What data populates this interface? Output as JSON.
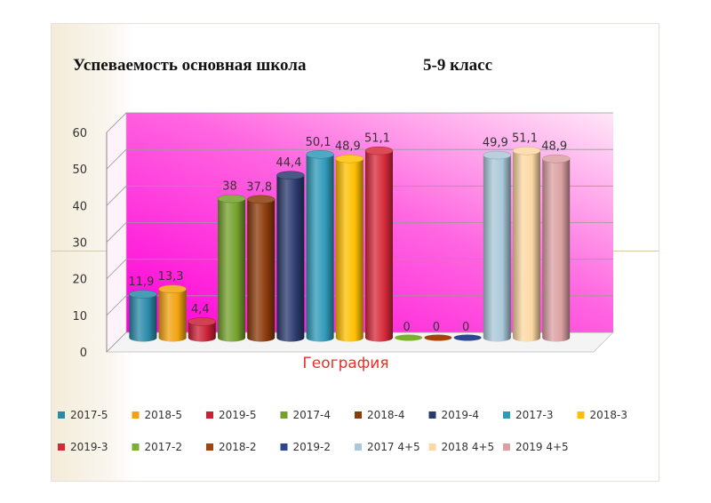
{
  "slide": {
    "title": "Успеваемость основная школа",
    "subtitle": "5-9 класс"
  },
  "colors": {
    "wall_gradient_start": "#ff00d8",
    "wall_gradient_end": "#ffe6f7",
    "floor": "#f4f4f4",
    "category_label": "#e8312a",
    "value_label": "#333333"
  },
  "chart_data": {
    "type": "bar",
    "style": "3d-cylinder",
    "categories": [
      "География"
    ],
    "xlabel": "География",
    "ylabel": "",
    "ylim": [
      0,
      60
    ],
    "yticks": [
      0,
      10,
      20,
      30,
      40,
      50,
      60
    ],
    "grid": true,
    "legend_position": "bottom",
    "series": [
      {
        "name": "2017-5",
        "values": [
          11.9
        ],
        "label": "11,9",
        "color": "#2a8aa8"
      },
      {
        "name": "2018-5",
        "values": [
          13.3
        ],
        "label": "13,3",
        "color": "#f2a20f"
      },
      {
        "name": "2019-5",
        "values": [
          4.4
        ],
        "label": "4,4",
        "color": "#c92035"
      },
      {
        "name": "2017-4",
        "values": [
          38
        ],
        "label": "38",
        "color": "#74a02c"
      },
      {
        "name": "2018-4",
        "values": [
          37.8
        ],
        "label": "37,8",
        "color": "#8b3a0a"
      },
      {
        "name": "2019-4",
        "values": [
          44.4
        ],
        "label": "44,4",
        "color": "#2b3a6e"
      },
      {
        "name": "2017-3",
        "values": [
          50.1
        ],
        "label": "50,1",
        "color": "#2f9ab8"
      },
      {
        "name": "2018-3",
        "values": [
          48.9
        ],
        "label": "48,9",
        "color": "#ffbf00"
      },
      {
        "name": "2019-3",
        "values": [
          51.1
        ],
        "label": "51,1",
        "color": "#d62a3a"
      },
      {
        "name": "2017-2",
        "values": [
          0
        ],
        "label": "0",
        "color": "#7bb02f"
      },
      {
        "name": "2018-2",
        "values": [
          0
        ],
        "label": "0",
        "color": "#a4440c"
      },
      {
        "name": "2019-2",
        "values": [
          0
        ],
        "label": "0",
        "color": "#2e4590"
      },
      {
        "name": "2017 4+5",
        "values": [
          49.9
        ],
        "label": "49,9",
        "color": "#a9c8d8"
      },
      {
        "name": "2018 4+5",
        "values": [
          51.1
        ],
        "label": "51,1",
        "color": "#fcd8a3"
      },
      {
        "name": "2019 4+5",
        "values": [
          48.9
        ],
        "label": "48,9",
        "color": "#dba0a3"
      }
    ]
  }
}
